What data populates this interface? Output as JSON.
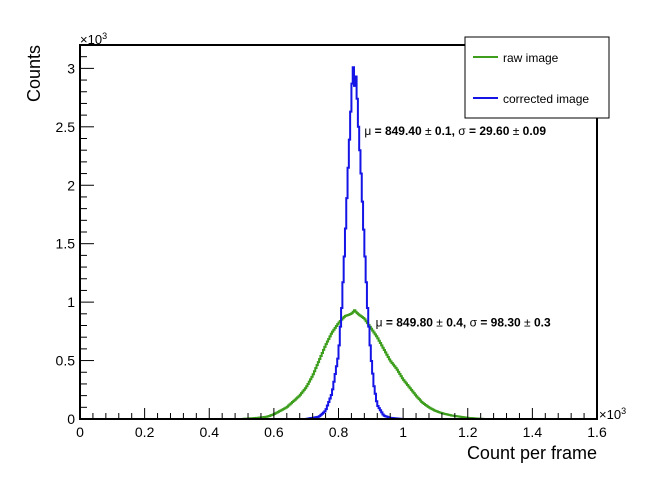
{
  "chart_data": {
    "type": "line",
    "xlabel": "Count per frame",
    "ylabel": "Counts",
    "xlim": [
      0,
      1.6
    ],
    "ylim": [
      0,
      3.2
    ],
    "x_multiplier": {
      "base": "×10",
      "exp": "3"
    },
    "y_multiplier": {
      "base": "×10",
      "exp": "3"
    },
    "x_ticks": [
      {
        "value": 0,
        "label": "0"
      },
      {
        "value": 0.2,
        "label": "0.2"
      },
      {
        "value": 0.4,
        "label": "0.4"
      },
      {
        "value": 0.6,
        "label": "0.6"
      },
      {
        "value": 0.8,
        "label": "0.8"
      },
      {
        "value": 1.0,
        "label": "1"
      },
      {
        "value": 1.2,
        "label": "1.2"
      },
      {
        "value": 1.4,
        "label": "1.4"
      },
      {
        "value": 1.6,
        "label": "1.6"
      }
    ],
    "y_ticks": [
      {
        "value": 0,
        "label": "0"
      },
      {
        "value": 0.5,
        "label": "0.5"
      },
      {
        "value": 1.0,
        "label": "1"
      },
      {
        "value": 1.5,
        "label": "1.5"
      },
      {
        "value": 2.0,
        "label": "2"
      },
      {
        "value": 2.5,
        "label": "2.5"
      },
      {
        "value": 3.0,
        "label": "3"
      }
    ],
    "grid": false,
    "legend": "top-right",
    "series": [
      {
        "name": "raw image",
        "color": "#3c9e1c",
        "x": [
          0,
          0.5,
          0.55,
          0.58,
          0.6,
          0.62,
          0.64,
          0.66,
          0.68,
          0.7,
          0.72,
          0.74,
          0.76,
          0.78,
          0.8,
          0.82,
          0.84,
          0.85,
          0.86,
          0.88,
          0.9,
          0.92,
          0.94,
          0.96,
          0.98,
          1.0,
          1.02,
          1.04,
          1.06,
          1.08,
          1.1,
          1.12,
          1.15,
          1.2,
          1.25,
          1.6
        ],
        "y": [
          0,
          0,
          0.01,
          0.02,
          0.04,
          0.07,
          0.1,
          0.15,
          0.2,
          0.27,
          0.37,
          0.5,
          0.63,
          0.74,
          0.82,
          0.88,
          0.9,
          0.93,
          0.9,
          0.86,
          0.78,
          0.7,
          0.6,
          0.5,
          0.43,
          0.34,
          0.27,
          0.2,
          0.14,
          0.1,
          0.07,
          0.05,
          0.03,
          0.01,
          0,
          0
        ]
      },
      {
        "name": "corrected image",
        "color": "#1414e6",
        "x": [
          0,
          0.7,
          0.74,
          0.76,
          0.78,
          0.8,
          0.81,
          0.82,
          0.83,
          0.84,
          0.845,
          0.85,
          0.855,
          0.86,
          0.87,
          0.88,
          0.89,
          0.9,
          0.91,
          0.92,
          0.94,
          0.96,
          1.0,
          1.6
        ],
        "y": [
          0,
          0,
          0.02,
          0.07,
          0.22,
          0.55,
          0.95,
          1.5,
          2.15,
          2.75,
          3.05,
          2.85,
          2.95,
          2.6,
          2.1,
          1.5,
          0.95,
          0.55,
          0.28,
          0.12,
          0.03,
          0.01,
          0,
          0
        ]
      }
    ],
    "annotations": [
      {
        "x": 0.88,
        "y": 2.43,
        "parts": [
          {
            "t": "μ",
            "bold": false
          },
          {
            "t": " = 849.40 ",
            "bold": true
          },
          {
            "t": "±",
            "bold": false
          },
          {
            "t": " 0.1, ",
            "bold": true
          },
          {
            "t": "σ",
            "bold": false
          },
          {
            "t": " = 29.60 ",
            "bold": true
          },
          {
            "t": "±",
            "bold": false
          },
          {
            "t": " 0.09",
            "bold": true
          }
        ]
      },
      {
        "x": 0.915,
        "y": 0.79,
        "parts": [
          {
            "t": "μ",
            "bold": false
          },
          {
            "t": " = 849.80 ",
            "bold": true
          },
          {
            "t": "±",
            "bold": false
          },
          {
            "t": " 0.4, ",
            "bold": true
          },
          {
            "t": "σ",
            "bold": false
          },
          {
            "t": " = 98.30 ",
            "bold": true
          },
          {
            "t": "±",
            "bold": false
          },
          {
            "t": " 0.3",
            "bold": true
          }
        ]
      }
    ]
  }
}
